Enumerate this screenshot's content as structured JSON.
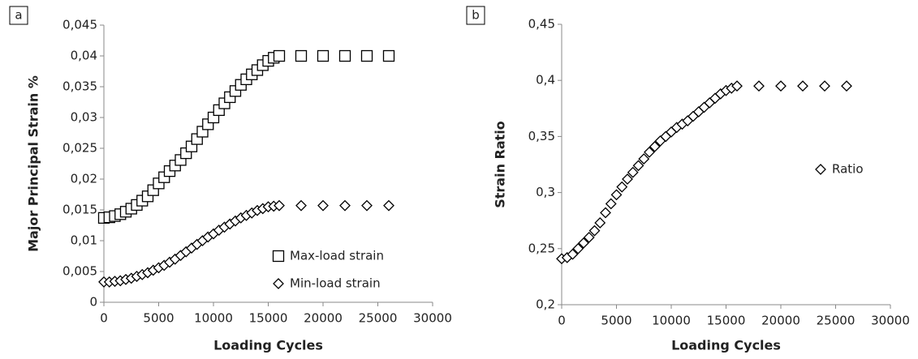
{
  "chart_data": [
    {
      "type": "scatter",
      "panel_label": "a",
      "x_label": "Loading Cycles",
      "y_label": "Major Principal Strain %",
      "x": [
        0,
        500,
        1000,
        1500,
        2000,
        2500,
        3000,
        3500,
        4000,
        4500,
        5000,
        5500,
        6000,
        6500,
        7000,
        7500,
        8000,
        8500,
        9000,
        9500,
        10000,
        10500,
        11000,
        11500,
        12000,
        12500,
        13000,
        13500,
        14000,
        14500,
        15000,
        15500,
        16000,
        18000,
        20000,
        22000,
        24000,
        26000
      ],
      "series": [
        {
          "name": "Max-load strain",
          "marker": "square",
          "color": "#000000",
          "values": [
            0.0137,
            0.0138,
            0.014,
            0.0143,
            0.0147,
            0.0152,
            0.0158,
            0.0165,
            0.0172,
            0.0182,
            0.0193,
            0.0203,
            0.0213,
            0.0222,
            0.0231,
            0.0242,
            0.0253,
            0.0265,
            0.0277,
            0.0289,
            0.03,
            0.0312,
            0.0323,
            0.0333,
            0.0343,
            0.0353,
            0.0362,
            0.037,
            0.0377,
            0.0385,
            0.0392,
            0.0397,
            0.04,
            0.04,
            0.04,
            0.04,
            0.04,
            0.04
          ]
        },
        {
          "name": "Min-load strain",
          "marker": "diamond",
          "color": "#000000",
          "values": [
            0.0033,
            0.0033,
            0.0034,
            0.0035,
            0.0037,
            0.0039,
            0.0042,
            0.0045,
            0.0048,
            0.0052,
            0.0056,
            0.006,
            0.0065,
            0.007,
            0.0076,
            0.0082,
            0.0088,
            0.0094,
            0.01,
            0.0106,
            0.0111,
            0.0117,
            0.0122,
            0.0127,
            0.0132,
            0.0137,
            0.0141,
            0.0145,
            0.0149,
            0.0152,
            0.0155,
            0.0156,
            0.0157,
            0.0157,
            0.0157,
            0.0157,
            0.0157,
            0.0157
          ]
        }
      ],
      "xlim": [
        0,
        30000
      ],
      "xticks": [
        0,
        5000,
        10000,
        15000,
        20000,
        25000,
        30000
      ],
      "ylim": [
        0,
        0.045
      ],
      "yticks": [
        0,
        {
          "value": 0.005,
          "label": "0,005"
        },
        {
          "value": 0.01,
          "label": "0,01"
        },
        {
          "value": 0.015,
          "label": "0,015"
        },
        {
          "value": 0.02,
          "label": "0,02"
        },
        {
          "value": 0.025,
          "label": "0,025"
        },
        {
          "value": 0.03,
          "label": "0,03"
        },
        {
          "value": 0.035,
          "label": "0,035"
        },
        {
          "value": 0.04,
          "label": "0,04"
        },
        {
          "value": 0.045,
          "label": "0,045"
        }
      ],
      "legend_position": "lower right"
    },
    {
      "type": "scatter",
      "panel_label": "b",
      "x_label": "Loading Cycles",
      "y_label": "Strain Ratio",
      "x": [
        0,
        500,
        1000,
        1500,
        2000,
        2500,
        3000,
        3500,
        4000,
        4500,
        5000,
        5500,
        6000,
        6500,
        7000,
        7500,
        8000,
        8500,
        9000,
        9500,
        10000,
        10500,
        11000,
        11500,
        12000,
        12500,
        13000,
        13500,
        14000,
        14500,
        15000,
        15500,
        16000,
        18000,
        20000,
        22000,
        24000,
        26000
      ],
      "series": [
        {
          "name": "Ratio",
          "marker": "diamond",
          "color": "#000000",
          "values": [
            0.241,
            0.242,
            0.245,
            0.25,
            0.255,
            0.26,
            0.266,
            0.273,
            0.282,
            0.29,
            0.298,
            0.305,
            0.312,
            0.318,
            0.324,
            0.33,
            0.336,
            0.341,
            0.346,
            0.35,
            0.354,
            0.358,
            0.361,
            0.364,
            0.368,
            0.372,
            0.376,
            0.38,
            0.384,
            0.388,
            0.391,
            0.393,
            0.395,
            0.395,
            0.395,
            0.395,
            0.395,
            0.395
          ]
        }
      ],
      "xlim": [
        0,
        30000
      ],
      "xticks": [
        0,
        5000,
        10000,
        15000,
        20000,
        25000,
        30000
      ],
      "ylim": [
        0.2,
        0.45
      ],
      "yticks": [
        {
          "value": 0.2,
          "label": "0,2"
        },
        {
          "value": 0.25,
          "label": "0,25"
        },
        {
          "value": 0.3,
          "label": "0,3"
        },
        {
          "value": 0.35,
          "label": "0,35"
        },
        {
          "value": 0.4,
          "label": "0,4"
        },
        {
          "value": 0.45,
          "label": "0,45"
        }
      ],
      "legend_position": "center right"
    }
  ]
}
